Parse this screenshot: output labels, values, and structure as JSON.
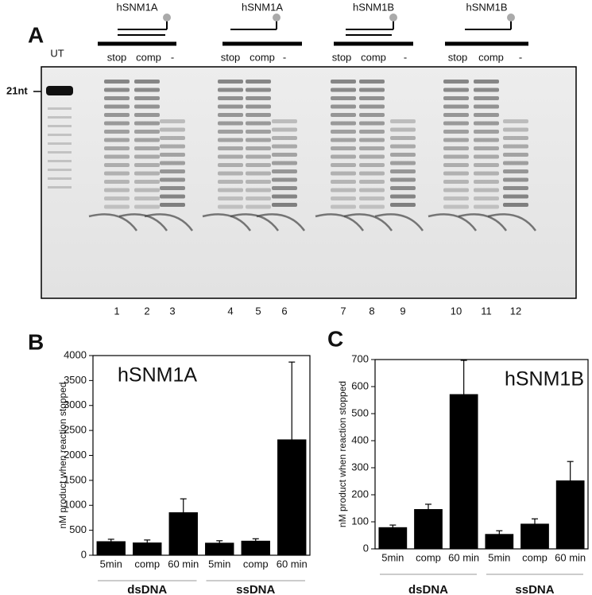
{
  "gel": {
    "panel": "A",
    "groups": [
      {
        "name": "hSNM1A",
        "lanes": [
          "stop",
          "comp",
          "-"
        ]
      },
      {
        "name": "hSNM1A",
        "lanes": [
          "stop",
          "comp",
          "-"
        ]
      },
      {
        "name": "hSNM1B",
        "lanes": [
          "stop",
          "comp",
          "-"
        ]
      },
      {
        "name": "hSNM1B",
        "lanes": [
          "stop",
          "comp",
          "-"
        ]
      }
    ],
    "untreated": "UT",
    "marker": "21nt",
    "lane_numbers": [
      "1",
      "2",
      "3",
      "4",
      "5",
      "6",
      "7",
      "8",
      "9",
      "10",
      "11",
      "12"
    ]
  },
  "chart_data": [
    {
      "type": "bar",
      "panel": "B",
      "title": "hSNM1A",
      "ylabel": "nM product when reaction stopped",
      "categories": [
        "5min",
        "comp",
        "60 min",
        "5min",
        "comp",
        "60 min"
      ],
      "groups": [
        "dsDNA",
        "ssDNA"
      ],
      "values": [
        280,
        255,
        860,
        250,
        290,
        2320
      ],
      "errors": [
        40,
        50,
        270,
        40,
        40,
        1550
      ],
      "color": "#000000",
      "ylim": [
        0,
        4000
      ],
      "yticks": [
        0,
        500,
        1000,
        1500,
        2000,
        2500,
        3000,
        3500,
        4000
      ]
    },
    {
      "type": "bar",
      "panel": "C",
      "title": "hSNM1B",
      "ylabel": "nM product when reaction stopped",
      "categories": [
        "5min",
        "comp",
        "60 min",
        "5min",
        "comp",
        "60 min"
      ],
      "groups": [
        "dsDNA",
        "ssDNA"
      ],
      "values": [
        80,
        147,
        572,
        55,
        93,
        253
      ],
      "errors": [
        8,
        18,
        125,
        12,
        18,
        70
      ],
      "color": "#000000",
      "ylim": [
        0,
        700
      ],
      "yticks": [
        0,
        100,
        200,
        300,
        400,
        500,
        600,
        700
      ]
    }
  ]
}
